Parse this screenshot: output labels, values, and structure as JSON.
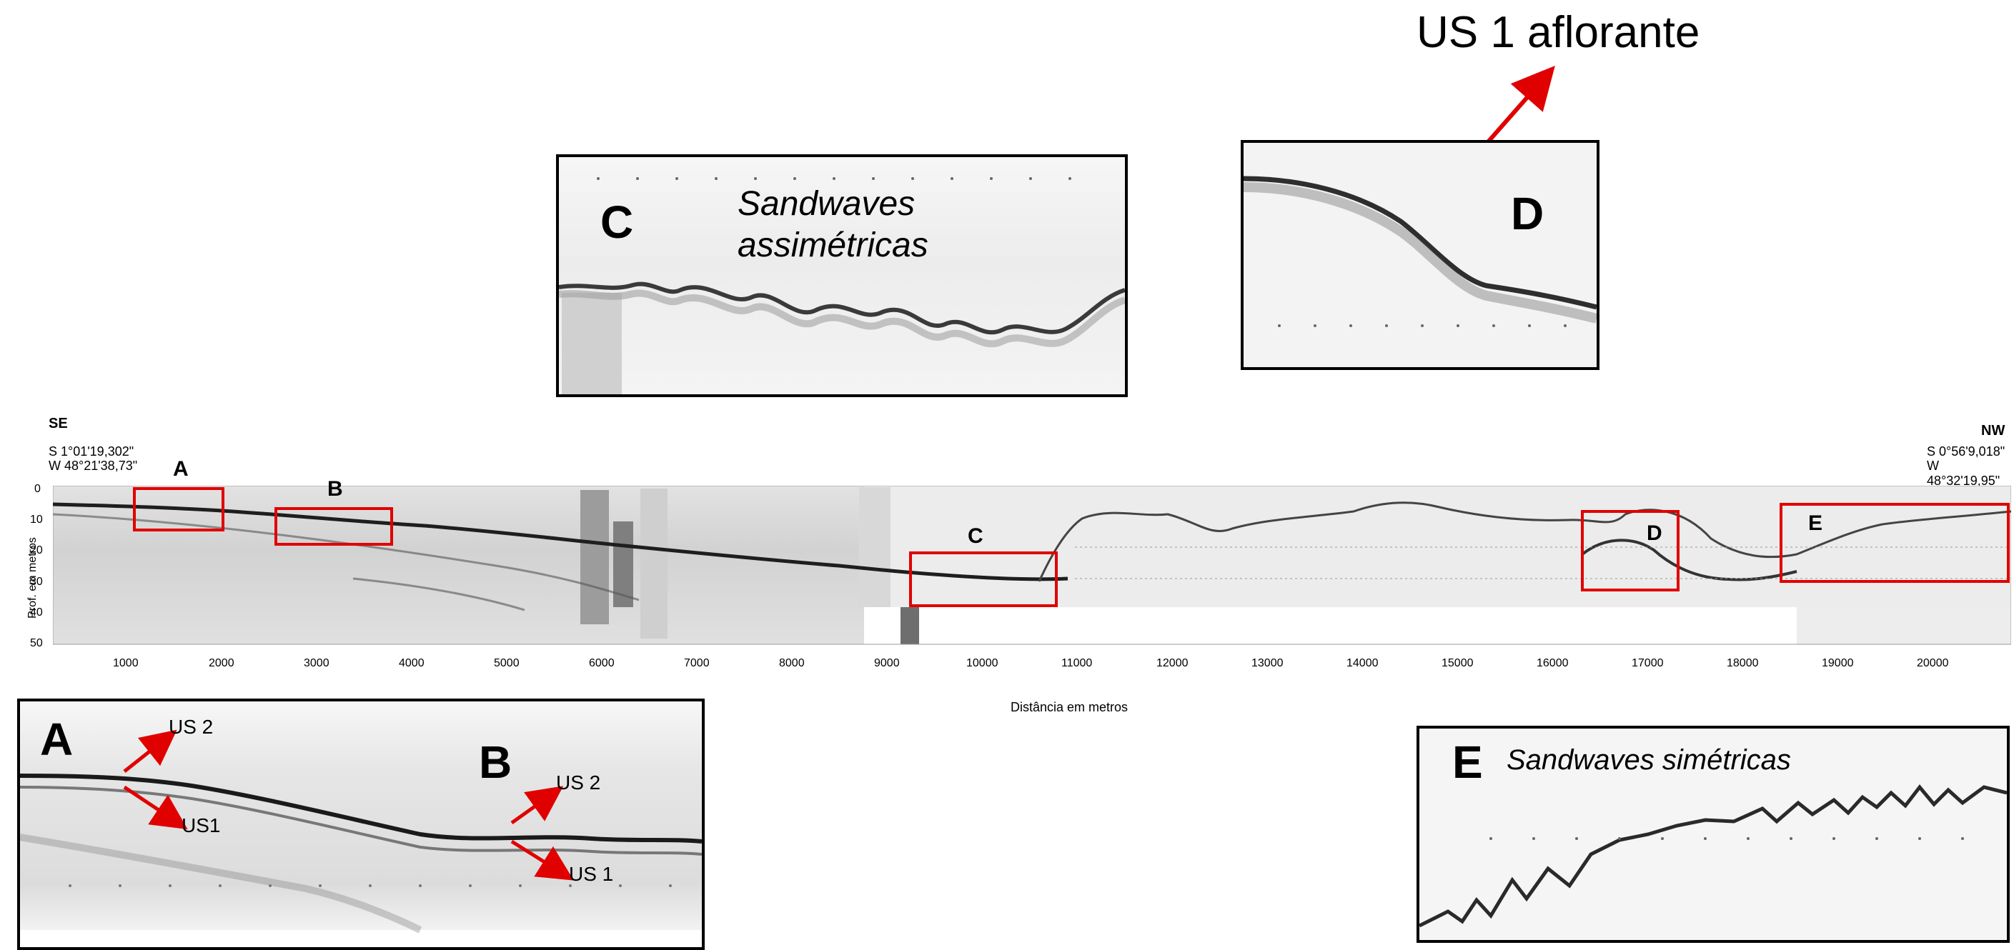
{
  "top_title": "US 1 aflorante",
  "panel_c": {
    "letter": "C",
    "caption_line1": "Sandwaves",
    "caption_line2": "assimétricas"
  },
  "panel_d": {
    "letter": "D"
  },
  "panel_ab": {
    "letter_a": "A",
    "letter_b": "B",
    "us2_a": "US 2",
    "us1_a": "US1",
    "us2_b": "US 2",
    "us1_b": "US 1"
  },
  "panel_e": {
    "letter": "E",
    "caption": "Sandwaves simétricas"
  },
  "profile": {
    "left_direction": "SE",
    "right_direction": "NW",
    "left_coord_lat": "S 1°01'19,302\"",
    "left_coord_lon": "W 48°21'38,73\"",
    "right_coord_lat": "S 0°56'9,018\"",
    "right_coord_lon": "W 48°32'19,95\"",
    "y_axis_label": "Prof. em metros",
    "x_axis_label": "Distância em metros",
    "y_ticks": [
      "0",
      "10",
      "20",
      "30",
      "40",
      "50"
    ],
    "x_ticks": [
      "1000",
      "2000",
      "3000",
      "4000",
      "5000",
      "6000",
      "7000",
      "8000",
      "9000",
      "10000",
      "11000",
      "12000",
      "13000",
      "14000",
      "15000",
      "16000",
      "17000",
      "18000",
      "19000",
      "20000"
    ],
    "box_labels": [
      "A",
      "B",
      "C",
      "D",
      "E"
    ]
  },
  "colors": {
    "highlight_box": "#e00000",
    "arrow": "#e00000",
    "frame": "#000000"
  }
}
